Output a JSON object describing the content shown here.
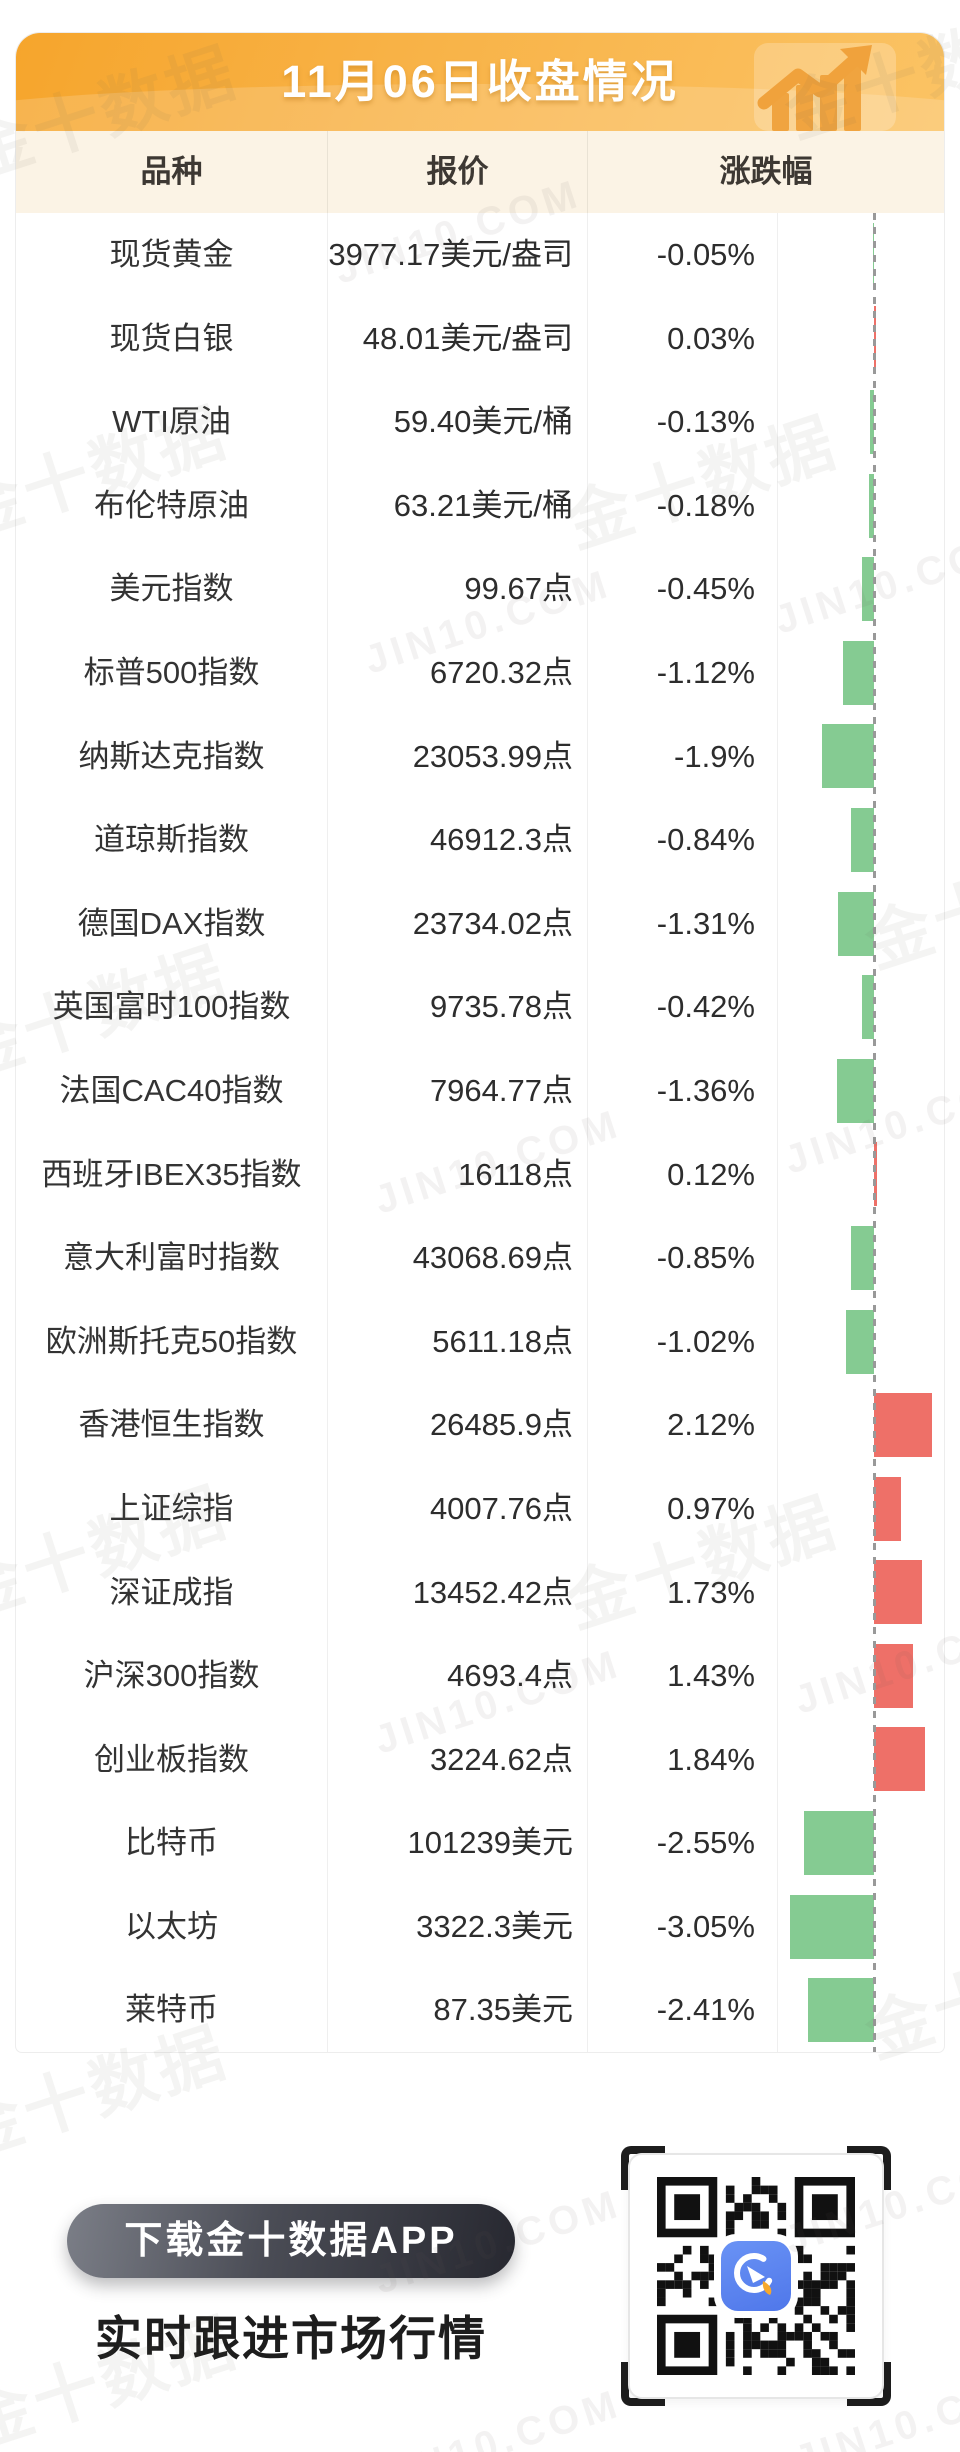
{
  "header": {
    "title": "11月06日收盘情况",
    "icon": "bar-chart-rising-arrow-icon"
  },
  "table": {
    "columns": [
      "品种",
      "报价",
      "涨跌幅"
    ],
    "rows": [
      {
        "name": "现货黄金",
        "price": "3977.17美元/盎司",
        "change": "-0.05%",
        "pct": -0.05
      },
      {
        "name": "现货白银",
        "price": "48.01美元/盎司",
        "change": "0.03%",
        "pct": 0.03
      },
      {
        "name": "WTI原油",
        "price": "59.40美元/桶",
        "change": "-0.13%",
        "pct": -0.13
      },
      {
        "name": "布伦特原油",
        "price": "63.21美元/桶",
        "change": "-0.18%",
        "pct": -0.18
      },
      {
        "name": "美元指数",
        "price": "99.67点",
        "change": "-0.45%",
        "pct": -0.45
      },
      {
        "name": "标普500指数",
        "price": "6720.32点",
        "change": "-1.12%",
        "pct": -1.12
      },
      {
        "name": "纳斯达克指数",
        "price": "23053.99点",
        "change": "-1.9%",
        "pct": -1.9
      },
      {
        "name": "道琼斯指数",
        "price": "46912.3点",
        "change": "-0.84%",
        "pct": -0.84
      },
      {
        "name": "德国DAX指数",
        "price": "23734.02点",
        "change": "-1.31%",
        "pct": -1.31
      },
      {
        "name": "英国富时100指数",
        "price": "9735.78点",
        "change": "-0.42%",
        "pct": -0.42
      },
      {
        "name": "法国CAC40指数",
        "price": "7964.77点",
        "change": "-1.36%",
        "pct": -1.36
      },
      {
        "name": "西班牙IBEX35指数",
        "price": "16118点",
        "change": "0.12%",
        "pct": 0.12
      },
      {
        "name": "意大利富时指数",
        "price": "43068.69点",
        "change": "-0.85%",
        "pct": -0.85
      },
      {
        "name": "欧洲斯托克50指数",
        "price": "5611.18点",
        "change": "-1.02%",
        "pct": -1.02
      },
      {
        "name": "香港恒生指数",
        "price": "26485.9点",
        "change": "2.12%",
        "pct": 2.12
      },
      {
        "name": "上证综指",
        "price": "4007.76点",
        "change": "0.97%",
        "pct": 0.97
      },
      {
        "name": "深证成指",
        "price": "13452.42点",
        "change": "1.73%",
        "pct": 1.73
      },
      {
        "name": "沪深300指数",
        "price": "4693.4点",
        "change": "1.43%",
        "pct": 1.43
      },
      {
        "name": "创业板指数",
        "price": "3224.62点",
        "change": "1.84%",
        "pct": 1.84
      },
      {
        "name": "比特币",
        "price": "101239美元",
        "change": "-2.55%",
        "pct": -2.55
      },
      {
        "name": "以太坊",
        "price": "3322.3美元",
        "change": "-3.05%",
        "pct": -3.05
      },
      {
        "name": "莱特币",
        "price": "87.35美元",
        "change": "-2.41%",
        "pct": -2.41
      }
    ]
  },
  "colors": {
    "up_bar": "#ee7068",
    "down_bar": "#85cb92",
    "axis": "#999999",
    "header_orange_start": "#f6a52c",
    "header_orange_end": "#fbc364",
    "thead_bg": "#fbf3e5"
  },
  "footer": {
    "download_label": "下载金十数据APP",
    "tagline": "实时跟进市场行情",
    "qr_center_icon": "jin10-app-icon"
  },
  "watermark": {
    "brand": "金十数据",
    "domain": "JIN10.COM"
  },
  "chart_data": {
    "type": "bar",
    "title": "11月06日收盘情况",
    "orientation": "horizontal",
    "categories": [
      "现货黄金",
      "现货白银",
      "WTI原油",
      "布伦特原油",
      "美元指数",
      "标普500指数",
      "纳斯达克指数",
      "道琼斯指数",
      "德国DAX指数",
      "英国富时100指数",
      "法国CAC40指数",
      "西班牙IBEX35指数",
      "意大利富时指数",
      "欧洲斯托克50指数",
      "香港恒生指数",
      "上证综指",
      "深证成指",
      "沪深300指数",
      "创业板指数",
      "比特币",
      "以太坊",
      "莱特币"
    ],
    "values": [
      -0.05,
      0.03,
      -0.13,
      -0.18,
      -0.45,
      -1.12,
      -1.9,
      -0.84,
      -1.31,
      -0.42,
      -1.36,
      0.12,
      -0.85,
      -1.02,
      2.12,
      0.97,
      1.73,
      1.43,
      1.84,
      -2.55,
      -3.05,
      -2.41
    ],
    "prices": [
      "3977.17美元/盎司",
      "48.01美元/盎司",
      "59.40美元/桶",
      "63.21美元/桶",
      "99.67点",
      "6720.32点",
      "23053.99点",
      "46912.3点",
      "23734.02点",
      "9735.78点",
      "7964.77点",
      "16118点",
      "43068.69点",
      "5611.18点",
      "26485.9点",
      "4007.76点",
      "13452.42点",
      "4693.4点",
      "3224.62点",
      "101239美元",
      "3322.3美元",
      "87.35美元"
    ],
    "xlabel": "涨跌幅 (%)",
    "ylabel": "品种",
    "xlim": [
      -3.5,
      2.5
    ],
    "legend": "none",
    "color_rule": "positive=red (#ee7068), negative=green (#85cb92)"
  }
}
